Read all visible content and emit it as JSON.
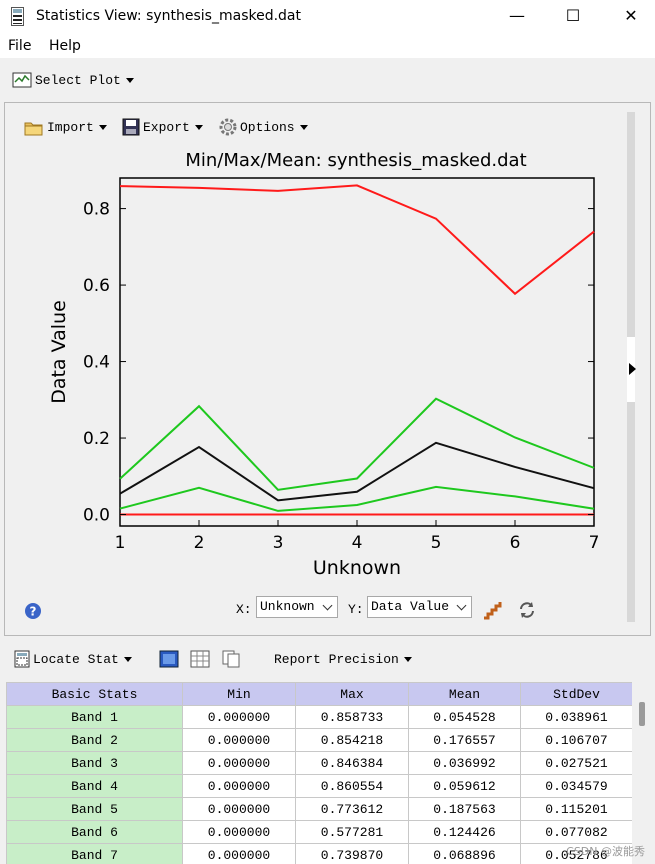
{
  "window": {
    "title": "Statistics View: synthesis_masked.dat",
    "minimize": "—",
    "maximize": "☐",
    "close": "✕"
  },
  "menu": {
    "file": "File",
    "help": "Help"
  },
  "toolbar": {
    "select_plot": "Select Plot"
  },
  "plot_toolbar": {
    "import": "Import",
    "export": "Export",
    "options": "Options"
  },
  "plot_controls": {
    "x_label": "X:",
    "x_value": "Unknown",
    "y_label": "Y:",
    "y_value": "Data Value",
    "help": "?"
  },
  "chart_data": {
    "type": "line",
    "title": "Min/Max/Mean: synthesis_masked.dat",
    "xlabel": "Unknown",
    "ylabel": "Data Value",
    "x": [
      1,
      2,
      3,
      4,
      5,
      6,
      7
    ],
    "xlim": [
      1,
      7
    ],
    "ylim": [
      -0.03,
      0.88
    ],
    "xticks": [
      "1",
      "2",
      "3",
      "4",
      "5",
      "6",
      "7"
    ],
    "yticks": [
      0.0,
      0.2,
      0.4,
      0.6,
      0.8
    ],
    "ytick_labels": [
      "0.0",
      "0.2",
      "0.4",
      "0.6",
      "0.8"
    ],
    "series": [
      {
        "color": "#ff1a1a",
        "values": [
          0.858733,
          0.854218,
          0.846384,
          0.860554,
          0.773612,
          0.577281,
          0.73987
        ]
      },
      {
        "color": "#ff1a1a",
        "values": [
          0,
          0,
          0,
          0,
          0,
          0,
          0
        ]
      },
      {
        "color": "#111111",
        "values": [
          0.054528,
          0.176557,
          0.036992,
          0.059612,
          0.187563,
          0.124426,
          0.068896
        ]
      },
      {
        "color": "#1ec81e",
        "values": [
          0.093489,
          0.283264,
          0.064513,
          0.094191,
          0.302764,
          0.201508,
          0.122
        ]
      },
      {
        "color": "#1ec81e",
        "values": [
          0.015567,
          0.06985,
          0.009471,
          0.025033,
          0.072362,
          0.047344,
          0.015
        ]
      }
    ]
  },
  "stat_toolbar": {
    "locate_stat": "Locate Stat",
    "report_precision": "Report Precision"
  },
  "table": {
    "headers": [
      "Basic Stats",
      "Min",
      "Max",
      "Mean",
      "StdDev"
    ],
    "rows": [
      [
        "Band 1",
        "0.000000",
        "0.858733",
        "0.054528",
        "0.038961"
      ],
      [
        "Band 2",
        "0.000000",
        "0.854218",
        "0.176557",
        "0.106707"
      ],
      [
        "Band 3",
        "0.000000",
        "0.846384",
        "0.036992",
        "0.027521"
      ],
      [
        "Band 4",
        "0.000000",
        "0.860554",
        "0.059612",
        "0.034579"
      ],
      [
        "Band 5",
        "0.000000",
        "0.773612",
        "0.187563",
        "0.115201"
      ],
      [
        "Band 6",
        "0.000000",
        "0.577281",
        "0.124426",
        "0.077082"
      ],
      [
        "Band 7",
        "0.000000",
        "0.739870",
        "0.068896",
        "0.052786"
      ]
    ]
  },
  "watermark": "CSDN @波能秀"
}
